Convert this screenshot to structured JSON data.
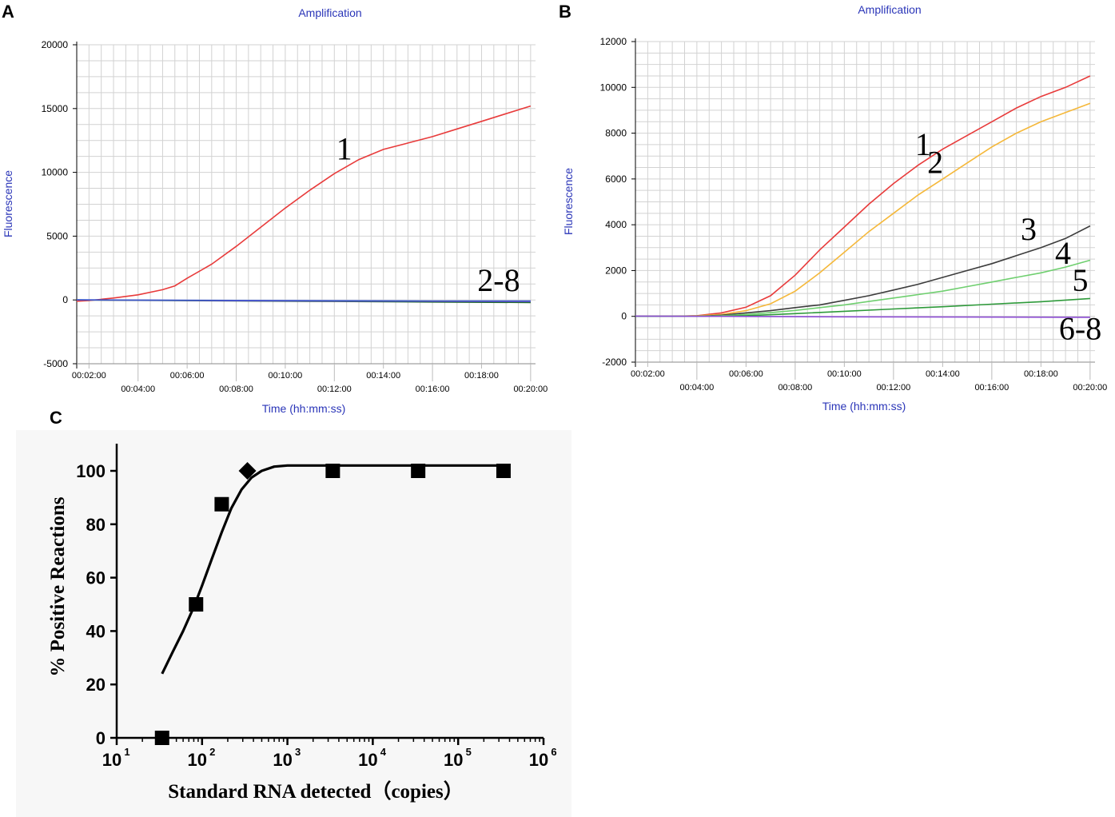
{
  "chart_data": [
    {
      "panel": "A",
      "type": "line",
      "title": "Amplification",
      "xlabel": "Time (hh:mm:ss)",
      "ylabel": "Fluorescence",
      "xlim_min": [
        1.5,
        20.2
      ],
      "ylim": [
        -5000,
        20000
      ],
      "yticks": [
        "20000",
        "15000",
        "10000",
        "5000",
        "0",
        "-5000"
      ],
      "xticks": [
        "00:02:00",
        "00:04:00",
        "00:06:00",
        "00:08:00",
        "00:10:00",
        "00:12:00",
        "00:14:00",
        "00:16:00",
        "00:18:00",
        "00:20:00"
      ],
      "series": [
        {
          "name": "1",
          "color": "#e83b3b",
          "x": [
            1.5,
            2,
            3,
            4,
            5,
            5.5,
            6,
            7,
            8,
            9,
            10,
            11,
            12,
            13,
            14,
            15,
            16,
            17,
            18,
            19,
            20
          ],
          "y": [
            -100,
            -50,
            150,
            400,
            800,
            1100,
            1700,
            2800,
            4200,
            5700,
            7200,
            8600,
            9900,
            11000,
            11800,
            12300,
            12800,
            13400,
            14000,
            14600,
            15200
          ]
        },
        {
          "name": "2-8 a",
          "color": "#1e6b2a",
          "x": [
            1.5,
            4,
            8,
            12,
            16,
            20
          ],
          "y": [
            0,
            -30,
            -80,
            -120,
            -160,
            -200
          ]
        },
        {
          "name": "2-8 b",
          "color": "#8b4bd1",
          "x": [
            1.5,
            4,
            8,
            12,
            16,
            20
          ],
          "y": [
            0,
            -20,
            -60,
            -90,
            -100,
            -120
          ]
        },
        {
          "name": "2-8 c",
          "color": "#3a57c9",
          "x": [
            1.5,
            4,
            8,
            12,
            16,
            20
          ],
          "y": [
            10,
            -10,
            -40,
            -60,
            -80,
            -90
          ]
        }
      ],
      "annotations": [
        {
          "text": "1",
          "x": 12.4,
          "y": 11000
        },
        {
          "text": "2-8",
          "x": 18.7,
          "y": 700
        }
      ]
    },
    {
      "panel": "B",
      "type": "line",
      "title": "Amplification",
      "xlabel": "Time (hh:mm:ss)",
      "ylabel": "Fluorescence",
      "xlim_min": [
        1.5,
        20.2
      ],
      "ylim": [
        -2000,
        12000
      ],
      "yticks": [
        "12000",
        "10000",
        "8000",
        "6000",
        "4000",
        "2000",
        "0",
        "-2000"
      ],
      "xticks": [
        "00:02:00",
        "00:04:00",
        "00:06:00",
        "00:08:00",
        "00:10:00",
        "00:12:00",
        "00:14:00",
        "00:16:00",
        "00:18:00",
        "00:20:00"
      ],
      "series": [
        {
          "name": "1",
          "color": "#e83b3b",
          "x": [
            1.5,
            3,
            4,
            5,
            6,
            7,
            8,
            9,
            10,
            11,
            12,
            13,
            14,
            15,
            16,
            17,
            18,
            19,
            20
          ],
          "y": [
            0,
            0,
            30,
            150,
            400,
            900,
            1800,
            2900,
            3900,
            4900,
            5800,
            6600,
            7300,
            7900,
            8500,
            9100,
            9600,
            10000,
            10500
          ]
        },
        {
          "name": "2",
          "color": "#f5b83a",
          "x": [
            1.5,
            3,
            4,
            5,
            6,
            7,
            8,
            9,
            10,
            11,
            12,
            13,
            14,
            15,
            16,
            17,
            18,
            19,
            20
          ],
          "y": [
            0,
            0,
            20,
            80,
            250,
            550,
            1100,
            1900,
            2800,
            3700,
            4500,
            5300,
            6000,
            6700,
            7400,
            8000,
            8500,
            8900,
            9300
          ]
        },
        {
          "name": "3",
          "color": "#3c3c3c",
          "x": [
            1.5,
            4,
            5,
            6,
            7,
            8,
            9,
            10,
            11,
            12,
            13,
            14,
            15,
            16,
            17,
            18,
            19,
            20
          ],
          "y": [
            0,
            0,
            50,
            150,
            250,
            380,
            500,
            700,
            900,
            1150,
            1400,
            1700,
            2000,
            2300,
            2650,
            3000,
            3400,
            3950
          ]
        },
        {
          "name": "4",
          "color": "#6fcf6f",
          "x": [
            1.5,
            4,
            5,
            6,
            7,
            8,
            9,
            10,
            11,
            12,
            13,
            14,
            15,
            16,
            17,
            18,
            19,
            20
          ],
          "y": [
            0,
            0,
            30,
            80,
            160,
            260,
            380,
            500,
            650,
            800,
            950,
            1100,
            1300,
            1500,
            1700,
            1900,
            2150,
            2450
          ]
        },
        {
          "name": "5",
          "color": "#2e9a3a",
          "x": [
            1.5,
            5,
            6,
            8,
            10,
            12,
            14,
            16,
            18,
            20
          ],
          "y": [
            0,
            0,
            30,
            120,
            220,
            320,
            420,
            530,
            640,
            780
          ]
        },
        {
          "name": "6-8",
          "color": "#8b4bd1",
          "x": [
            1.5,
            5,
            10,
            15,
            20
          ],
          "y": [
            10,
            0,
            -20,
            -30,
            -40
          ]
        }
      ],
      "annotations": [
        {
          "text": "1",
          "x": 13.2,
          "y": 7050
        },
        {
          "text": "2",
          "x": 13.7,
          "y": 6250
        },
        {
          "text": "3",
          "x": 17.5,
          "y": 3350
        },
        {
          "text": "4",
          "x": 18.9,
          "y": 2300
        },
        {
          "text": "5",
          "x": 19.6,
          "y": 1100
        },
        {
          "text": "6-8",
          "x": 19.6,
          "y": -1000
        }
      ]
    },
    {
      "panel": "C",
      "type": "scatter",
      "xscale": "log",
      "xlabel": "Standard RNA detected（copies）",
      "ylabel": "% Positive Reactions",
      "xlim": [
        10,
        1000000
      ],
      "ylim": [
        0,
        110
      ],
      "yticks": [
        "0",
        "20",
        "40",
        "60",
        "80",
        "100"
      ],
      "xtick_bases": [
        "10",
        "10",
        "10",
        "10",
        "10",
        "10"
      ],
      "xtick_exps": [
        "1",
        "2",
        "3",
        "4",
        "5",
        "6"
      ],
      "points": [
        {
          "x": 34,
          "y": 0,
          "marker": "square"
        },
        {
          "x": 85,
          "y": 50,
          "marker": "square"
        },
        {
          "x": 170,
          "y": 87.5,
          "marker": "square"
        },
        {
          "x": 340,
          "y": 100,
          "marker": "diamond"
        },
        {
          "x": 3400,
          "y": 100,
          "marker": "square"
        },
        {
          "x": 34000,
          "y": 100,
          "marker": "square"
        },
        {
          "x": 340000,
          "y": 100,
          "marker": "square"
        }
      ],
      "fit": {
        "x": [
          34,
          45,
          60,
          80,
          100,
          130,
          170,
          220,
          290,
          380,
          500,
          700,
          1000,
          2000,
          5000,
          20000,
          100000,
          340000
        ],
        "y": [
          24,
          32,
          40,
          49,
          57,
          67,
          77,
          86,
          93,
          97.5,
          100,
          101.6,
          102,
          102,
          102,
          102,
          102,
          102
        ]
      }
    }
  ]
}
